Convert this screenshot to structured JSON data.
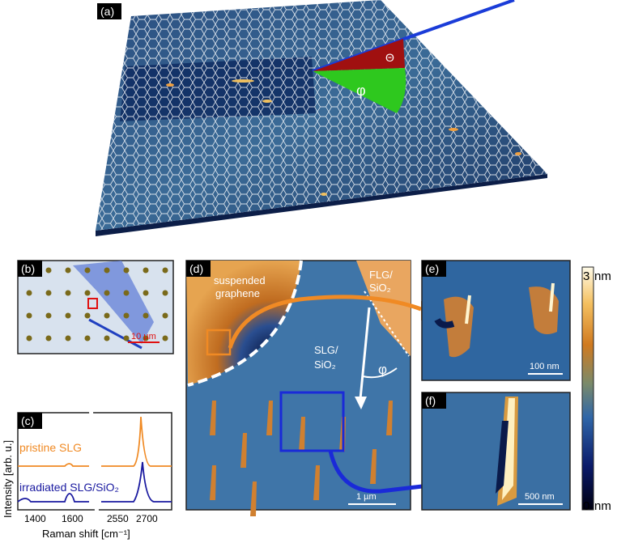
{
  "panels": {
    "a": {
      "label": "(a)",
      "theta": "Θ",
      "phi": "φ"
    },
    "b": {
      "label": "(b)",
      "scalebar": "10 µm"
    },
    "c": {
      "label": "(c)",
      "ylabel": "Intensity [arb. u.]",
      "xlabel": "Raman shift [cm⁻¹]",
      "ticks": [
        "1400",
        "1600",
        "2550",
        "2700"
      ],
      "series_pristine": "pristine SLG",
      "series_irradiated": "irradiated SLG/SiO₂"
    },
    "d": {
      "label": "(d)",
      "suspended_line1": "suspended",
      "suspended_line2": "graphene",
      "flg_line1": "FLG/",
      "flg_line2": "SiO₂",
      "slg_line1": "SLG/",
      "slg_line2": "SiO₂",
      "phi": "φ",
      "scalebar": "1 µm"
    },
    "e": {
      "label": "(e)",
      "scalebar": "100 nm"
    },
    "f": {
      "label": "(f)",
      "scalebar": "500 nm"
    },
    "colorbar": {
      "max": "3",
      "min": "0",
      "unit_top": "nm",
      "unit_bottom": "nm"
    }
  },
  "chart_data": {
    "type": "line",
    "xlabel": "Raman shift [cm⁻¹]",
    "ylabel": "Intensity [arb. u.]",
    "x_ticks": [
      1400,
      1600,
      2550,
      2700
    ],
    "series": [
      {
        "name": "pristine SLG",
        "color": "#f08a24",
        "peaks_x": [
          1585,
          2680
        ],
        "peak_heights": [
          0.12,
          1.0
        ]
      },
      {
        "name": "irradiated SLG/SiO₂",
        "color": "#1a1aa0",
        "peaks_x": [
          1350,
          1590,
          2690
        ],
        "peak_heights": [
          0.1,
          0.5,
          1.0
        ]
      }
    ]
  },
  "colors": {
    "afm_dark": "#0a1a4a",
    "afm_mid": "#3a6a98",
    "afm_orange": "#d08030",
    "laser": "#1a3cd8",
    "theta": "#a01010",
    "phi": "#2ec81e"
  }
}
